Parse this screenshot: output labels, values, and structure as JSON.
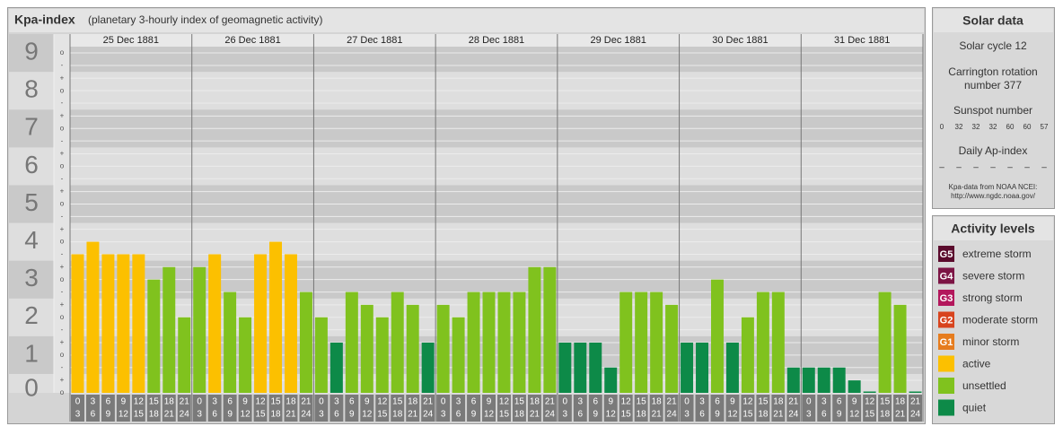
{
  "chart_data": {
    "type": "bar",
    "title": "Kpa-index",
    "subtitle": "(planetary 3-hourly index of geomagnetic activity)",
    "ylim": [
      0,
      9.5
    ],
    "yticks": [
      0,
      1,
      2,
      3,
      4,
      5,
      6,
      7,
      8,
      9
    ],
    "minor_ticks": [
      {
        "value": 0,
        "label": "o"
      },
      {
        "value": 0.33,
        "label": "+"
      },
      {
        "value": 0.67,
        "label": "-"
      },
      {
        "value": 1,
        "label": "o"
      },
      {
        "value": 1.33,
        "label": "+"
      },
      {
        "value": 1.67,
        "label": "-"
      },
      {
        "value": 2,
        "label": "o"
      },
      {
        "value": 2.33,
        "label": "+"
      },
      {
        "value": 2.67,
        "label": "-"
      },
      {
        "value": 3,
        "label": "o"
      },
      {
        "value": 3.33,
        "label": "+"
      },
      {
        "value": 3.67,
        "label": "-"
      },
      {
        "value": 4,
        "label": "o"
      },
      {
        "value": 4.33,
        "label": "+"
      },
      {
        "value": 4.67,
        "label": "-"
      },
      {
        "value": 5,
        "label": "o"
      },
      {
        "value": 5.33,
        "label": "+"
      },
      {
        "value": 5.67,
        "label": "-"
      },
      {
        "value": 6,
        "label": "o"
      },
      {
        "value": 6.33,
        "label": "+"
      },
      {
        "value": 6.67,
        "label": "-"
      },
      {
        "value": 7,
        "label": "o"
      },
      {
        "value": 7.33,
        "label": "+"
      },
      {
        "value": 7.67,
        "label": "-"
      },
      {
        "value": 8,
        "label": "o"
      },
      {
        "value": 8.33,
        "label": "+"
      },
      {
        "value": 8.67,
        "label": "-"
      },
      {
        "value": 9,
        "label": "o"
      }
    ],
    "grid": true,
    "time_slots": [
      [
        "0",
        "3"
      ],
      [
        "3",
        "6"
      ],
      [
        "6",
        "9"
      ],
      [
        "9",
        "12"
      ],
      [
        "12",
        "15"
      ],
      [
        "15",
        "18"
      ],
      [
        "18",
        "21"
      ],
      [
        "21",
        "24"
      ]
    ],
    "days": [
      {
        "date": "25 Dec 1881",
        "values": [
          3.67,
          4,
          3.67,
          3.67,
          3.67,
          3,
          3.33,
          2
        ],
        "colors": [
          "#fcc000",
          "#fcc000",
          "#fcc000",
          "#fcc000",
          "#fcc000",
          "#80c21e",
          "#80c21e",
          "#80c21e"
        ]
      },
      {
        "date": "26 Dec 1881",
        "values": [
          3.33,
          3.67,
          2.67,
          2,
          3.67,
          4,
          3.67,
          2.67
        ],
        "colors": [
          "#80c21e",
          "#fcc000",
          "#80c21e",
          "#80c21e",
          "#fcc000",
          "#fcc000",
          "#fcc000",
          "#80c21e"
        ]
      },
      {
        "date": "27 Dec 1881",
        "values": [
          2,
          1.33,
          2.67,
          2.33,
          2,
          2.67,
          2.33,
          1.33
        ],
        "colors": [
          "#80c21e",
          "#0d8a48",
          "#80c21e",
          "#80c21e",
          "#80c21e",
          "#80c21e",
          "#80c21e",
          "#0d8a48"
        ]
      },
      {
        "date": "28 Dec 1881",
        "values": [
          2.33,
          2,
          2.67,
          2.67,
          2.67,
          2.67,
          3.33,
          3.33
        ],
        "colors": [
          "#80c21e",
          "#80c21e",
          "#80c21e",
          "#80c21e",
          "#80c21e",
          "#80c21e",
          "#80c21e",
          "#80c21e"
        ]
      },
      {
        "date": "29 Dec 1881",
        "values": [
          1.33,
          1.33,
          1.33,
          0.67,
          2.67,
          2.67,
          2.67,
          2.33
        ],
        "colors": [
          "#0d8a48",
          "#0d8a48",
          "#0d8a48",
          "#0d8a48",
          "#80c21e",
          "#80c21e",
          "#80c21e",
          "#80c21e"
        ]
      },
      {
        "date": "30 Dec 1881",
        "values": [
          1.33,
          1.33,
          3,
          1.33,
          2,
          2.67,
          2.67,
          0.67
        ],
        "colors": [
          "#0d8a48",
          "#0d8a48",
          "#80c21e",
          "#0d8a48",
          "#80c21e",
          "#80c21e",
          "#80c21e",
          "#0d8a48"
        ]
      },
      {
        "date": "31 Dec 1881",
        "values": [
          0.67,
          0.67,
          0.67,
          0.33,
          0,
          2.67,
          2.33,
          0
        ],
        "colors": [
          "#0d8a48",
          "#0d8a48",
          "#0d8a48",
          "#0d8a48",
          "#0d8a48",
          "#80c21e",
          "#80c21e",
          "#0d8a48"
        ]
      }
    ]
  },
  "solar_data": {
    "title": "Solar data",
    "solar_cycle": "Solar cycle 12",
    "carrington": [
      "Carrington rotation",
      "number 377"
    ],
    "sunspot_title": "Sunspot number",
    "sunspot_numbers": [
      0,
      32,
      32,
      32,
      60,
      60,
      57
    ],
    "ap_title": "Daily Ap-index",
    "ap_values": [
      "–",
      "–",
      "–",
      "–",
      "–",
      "–",
      "–"
    ],
    "source": [
      "Kpa-data from NOAA NCEI:",
      "http://www.ngdc.noaa.gov/"
    ]
  },
  "activity_levels": {
    "title": "Activity levels",
    "items": [
      {
        "badge": "G5",
        "label": "extreme storm",
        "color": "#5a0a2c"
      },
      {
        "badge": "G4",
        "label": "severe storm",
        "color": "#7c1444"
      },
      {
        "badge": "G3",
        "label": "strong storm",
        "color": "#b3175c"
      },
      {
        "badge": "G2",
        "label": "moderate storm",
        "color": "#d8441e"
      },
      {
        "badge": "G1",
        "label": "minor storm",
        "color": "#e67c1e"
      },
      {
        "label": "active",
        "color": "#fcc000"
      },
      {
        "label": "unsettled",
        "color": "#80c21e"
      },
      {
        "label": "quiet",
        "color": "#0d8a48"
      }
    ]
  }
}
